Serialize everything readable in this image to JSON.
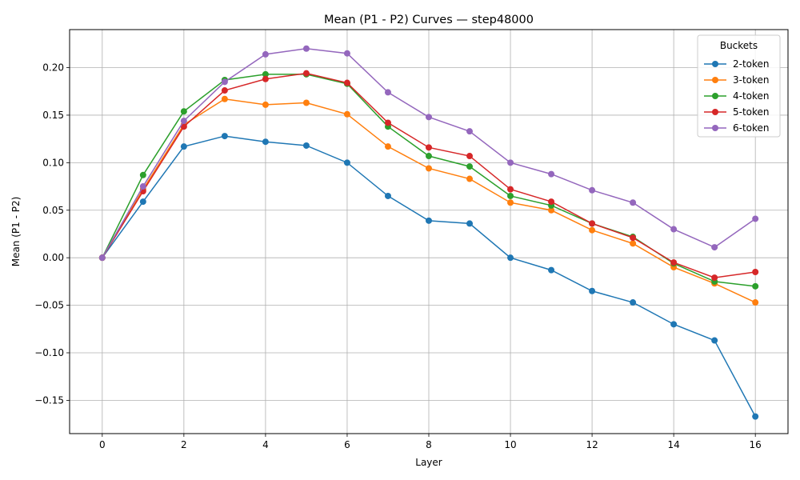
{
  "chart_data": {
    "type": "line",
    "title": "Mean (P1 - P2) Curves — step48000",
    "xlabel": "Layer",
    "ylabel": "Mean (P1 - P2)",
    "xlim": [
      -0.8,
      16.8
    ],
    "ylim": [
      -0.185,
      0.24
    ],
    "xticks": [
      0,
      2,
      4,
      6,
      8,
      10,
      12,
      14,
      16
    ],
    "yticks": [
      -0.15,
      -0.1,
      -0.05,
      0.0,
      0.05,
      0.1,
      0.15,
      0.2
    ],
    "ytick_labels": [
      "−0.15",
      "−0.10",
      "−0.05",
      "0.00",
      "0.05",
      "0.10",
      "0.15",
      "0.20"
    ],
    "grid": true,
    "legend_title": "Buckets",
    "legend_position": "top-right",
    "x": [
      0,
      1,
      2,
      3,
      4,
      5,
      6,
      7,
      8,
      9,
      10,
      11,
      12,
      13,
      14,
      15,
      16
    ],
    "series": [
      {
        "name": "2-token",
        "color": "#1f77b4",
        "values": [
          0.0,
          0.059,
          0.117,
          0.128,
          0.122,
          0.118,
          0.1,
          0.065,
          0.039,
          0.036,
          0.0,
          -0.013,
          -0.035,
          -0.047,
          -0.07,
          -0.087,
          -0.167
        ]
      },
      {
        "name": "3-token",
        "color": "#ff7f0e",
        "values": [
          0.0,
          0.072,
          0.14,
          0.167,
          0.161,
          0.163,
          0.151,
          0.117,
          0.094,
          0.083,
          0.058,
          0.05,
          0.029,
          0.015,
          -0.01,
          -0.027,
          -0.047
        ]
      },
      {
        "name": "4-token",
        "color": "#2ca02c",
        "values": [
          0.0,
          0.087,
          0.154,
          0.187,
          0.193,
          0.193,
          0.183,
          0.138,
          0.107,
          0.096,
          0.065,
          0.055,
          0.036,
          0.022,
          -0.006,
          -0.025,
          -0.03
        ]
      },
      {
        "name": "5-token",
        "color": "#d62728",
        "values": [
          0.0,
          0.07,
          0.138,
          0.176,
          0.188,
          0.194,
          0.184,
          0.142,
          0.116,
          0.107,
          0.072,
          0.059,
          0.036,
          0.021,
          -0.005,
          -0.021,
          -0.015
        ]
      },
      {
        "name": "6-token",
        "color": "#9467bd",
        "values": [
          0.0,
          0.075,
          0.144,
          0.185,
          0.214,
          0.22,
          0.215,
          0.174,
          0.148,
          0.133,
          0.1,
          0.088,
          0.071,
          0.058,
          0.03,
          0.011,
          0.041
        ]
      }
    ]
  }
}
